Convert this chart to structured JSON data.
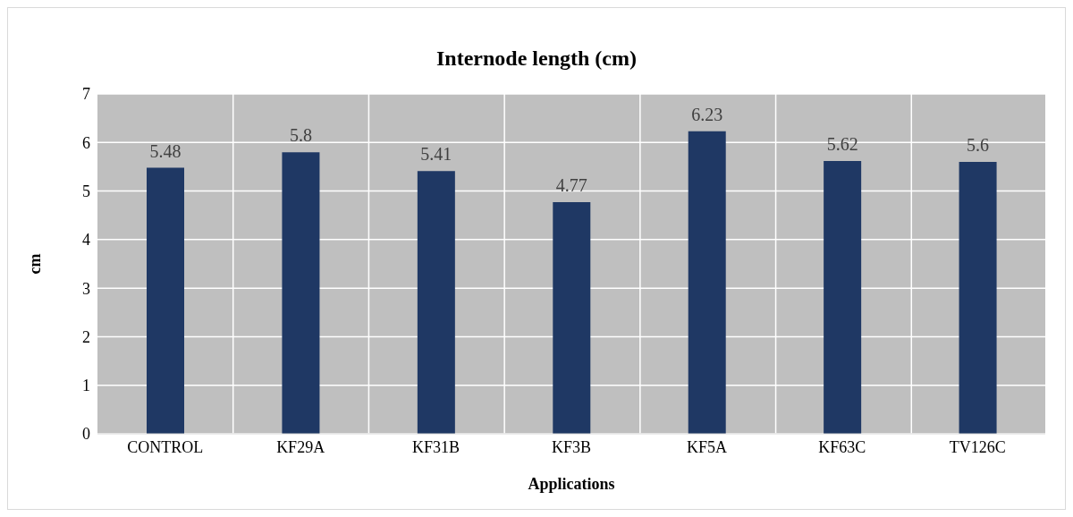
{
  "chart_data": {
    "type": "bar",
    "title": "Internode length (cm)",
    "xlabel": "Applications",
    "ylabel": "cm",
    "categories": [
      "CONTROL",
      "KF29A",
      "KF31B",
      "KF3B",
      "KF5A",
      "KF63C",
      "TV126C"
    ],
    "values": [
      5.48,
      5.8,
      5.41,
      4.77,
      6.23,
      5.62,
      5.6
    ],
    "color": "#1f3864",
    "ylim": [
      0,
      7
    ],
    "yticks": [
      0,
      1,
      2,
      3,
      4,
      5,
      6,
      7
    ],
    "grid": true,
    "data_labels": true
  }
}
